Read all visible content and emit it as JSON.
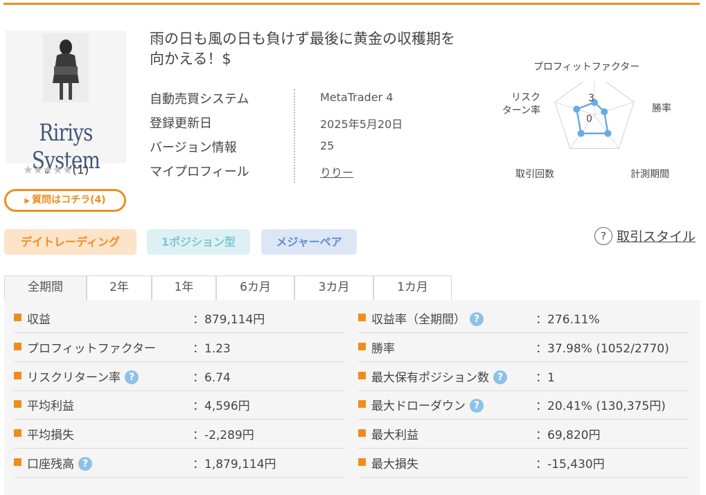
{
  "product": {
    "brand_text": "Ririys System",
    "title": "雨の日も風の日も負けず最後に黄金の収穫期を向かえる！$",
    "rating": {
      "stars": "★★★★★",
      "count": "(1)",
      "value": 0
    },
    "qa_button": "質問はコチラ(4)"
  },
  "info": [
    {
      "label": "自動売買システム",
      "value": "MetaTrader 4",
      "link": false
    },
    {
      "label": "登録更新日",
      "value": "2025年5月20日",
      "link": false
    },
    {
      "label": "バージョン情報",
      "value": "25",
      "link": false
    },
    {
      "label": "マイプロフィール",
      "value": "りりー",
      "link": true
    }
  ],
  "radar": {
    "labels": {
      "top": "プロフィットファクター",
      "right": "勝率",
      "bottom_right": "計測期間",
      "bottom_left": "取引回数",
      "left": "リスク\nターン率"
    },
    "scale_max": "3",
    "scale_min": "0",
    "line_color": "#6aaae4",
    "values": {
      "profit_factor": 0.3,
      "win_rate": 0.25,
      "period": 0.55,
      "trades": 0.55,
      "risk_return": 0.45
    }
  },
  "tags": [
    "デイトレーディング",
    "1ポジション型",
    "メジャーペア"
  ],
  "trade_style": {
    "icon": "?",
    "label": "取引スタイル"
  },
  "tabs": [
    "全期間",
    "2年",
    "1年",
    "6カ月",
    "3カ月",
    "1カ月"
  ],
  "active_tab": 0,
  "stats_left": [
    {
      "label": "収益",
      "value": "：879,114円",
      "help": false
    },
    {
      "label": "プロフィットファクター",
      "value": "：1.23",
      "help": false
    },
    {
      "label": "リスクリターン率",
      "value": "：6.74",
      "help": true
    },
    {
      "label": "平均利益",
      "value": "：4,596円",
      "help": false
    },
    {
      "label": "平均損失",
      "value": "：-2,289円",
      "help": false
    },
    {
      "label": "口座残高",
      "value": "：1,879,114円",
      "help": true
    }
  ],
  "stats_right": [
    {
      "label": "収益率（全期間）",
      "value": "：276.11%",
      "help": true
    },
    {
      "label": "勝率",
      "value": "：37.98% (1052/2770)",
      "help": false
    },
    {
      "label": "最大保有ポジション数",
      "value": "：1",
      "help": true
    },
    {
      "label": "最大ドローダウン",
      "value": "：20.41% (130,375円)",
      "help": true
    },
    {
      "label": "最大利益",
      "value": "：69,820円",
      "help": false
    },
    {
      "label": "最大損失",
      "value": "：-15,430円",
      "help": false
    }
  ],
  "colors": {
    "accent": "#ef8c1e",
    "help": "#8ec1e8"
  }
}
